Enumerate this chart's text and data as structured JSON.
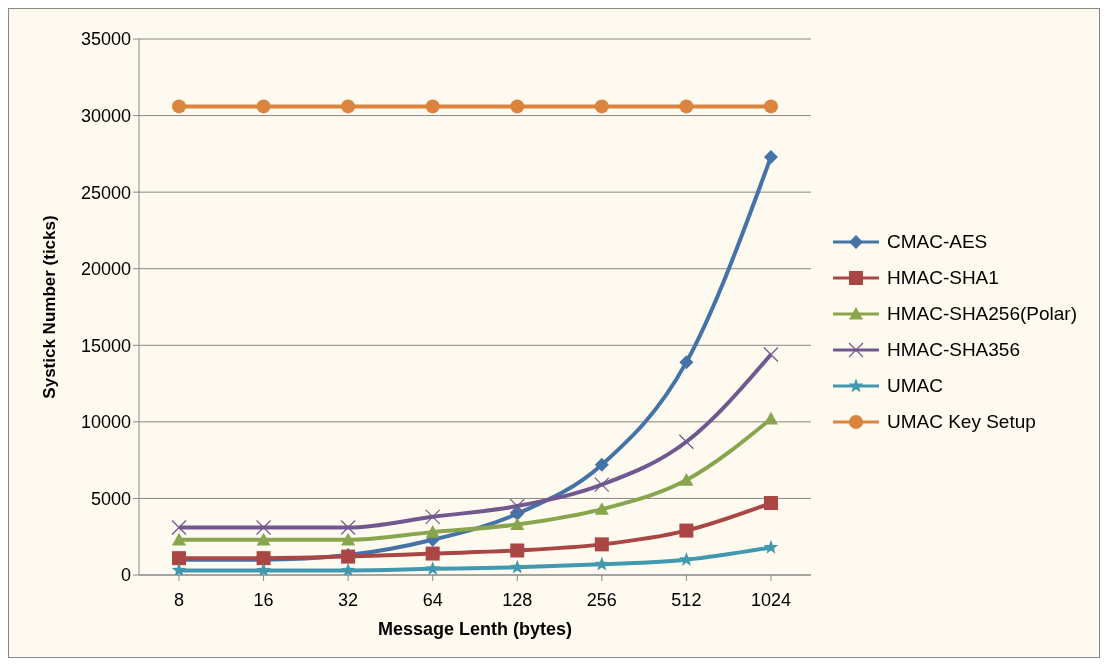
{
  "chart_data": {
    "type": "line",
    "xlabel": "Message Lenth (bytes)",
    "ylabel": "Systick Number (ticks)",
    "categories": [
      "8",
      "16",
      "32",
      "64",
      "128",
      "256",
      "512",
      "1024"
    ],
    "ylim": [
      0,
      35000
    ],
    "yticks": [
      0,
      5000,
      10000,
      15000,
      20000,
      25000,
      30000,
      35000
    ],
    "grid": "y",
    "legend": "right",
    "series": [
      {
        "name": "CMAC-AES",
        "color": "#4572a7",
        "marker": "diamond",
        "values": [
          1000,
          1000,
          1300,
          2300,
          4000,
          7200,
          13900,
          27300
        ]
      },
      {
        "name": "HMAC-SHA1",
        "color": "#aa4643",
        "marker": "square",
        "values": [
          1100,
          1100,
          1200,
          1400,
          1600,
          2000,
          2900,
          4700
        ]
      },
      {
        "name": "HMAC-SHA256(Polar)",
        "color": "#89a54e",
        "marker": "triangle",
        "values": [
          2300,
          2300,
          2300,
          2800,
          3300,
          4300,
          6200,
          10200
        ]
      },
      {
        "name": "HMAC-SHA356",
        "color": "#71588f",
        "marker": "cross",
        "values": [
          3100,
          3100,
          3100,
          3800,
          4500,
          5900,
          8700,
          14400
        ]
      },
      {
        "name": "UMAC",
        "color": "#4198af",
        "marker": "star",
        "values": [
          300,
          300,
          300,
          400,
          500,
          700,
          1000,
          1800
        ]
      },
      {
        "name": "UMAC Key Setup",
        "color": "#db843d",
        "marker": "circle",
        "values": [
          30600,
          30600,
          30600,
          30600,
          30600,
          30600,
          30600,
          30600
        ]
      }
    ]
  }
}
